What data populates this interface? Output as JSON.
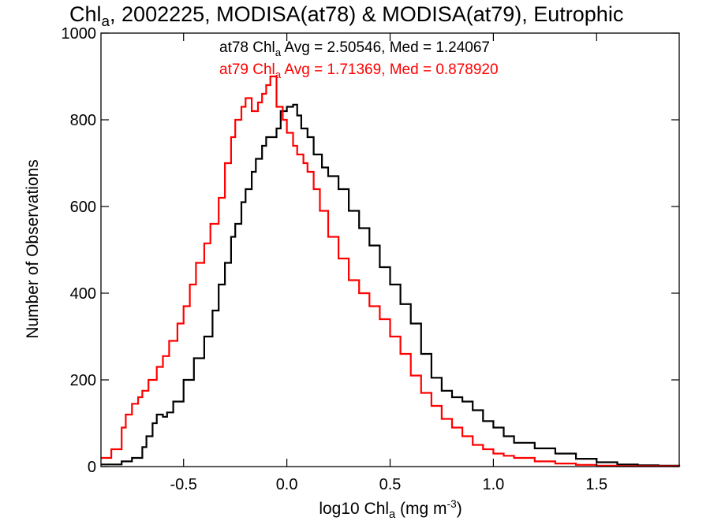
{
  "chart_data": {
    "type": "line",
    "step": true,
    "title": {
      "pre": "Chl",
      "sub": "a",
      "post": ", 2002225, MODISA(at78) & MODISA(at79), Eutrophic"
    },
    "xlabel": {
      "pre": "log10 Chl",
      "sub": "a",
      "mid": " (mg m",
      "sup": "-3",
      "post": ")"
    },
    "ylabel": "Number of Observations",
    "xlim": [
      -0.9,
      1.9
    ],
    "ylim": [
      0,
      1000
    ],
    "xticks": [
      "-0.5",
      "0.0",
      "0.5",
      "1.0",
      "1.5"
    ],
    "xtick_values": [
      -0.5,
      0.0,
      0.5,
      1.0,
      1.5
    ],
    "yticks": [
      "0",
      "200",
      "400",
      "600",
      "800",
      "1000"
    ],
    "ytick_values": [
      0,
      200,
      400,
      600,
      800,
      1000
    ],
    "grid": false,
    "annotations": [
      {
        "pre": "at78 Chl",
        "sub": "a",
        "post": " Avg = 2.50546, Med = 1.24067",
        "color": "#000000"
      },
      {
        "pre": "at79 Chl",
        "sub": "a",
        "post": " Avg = 1.71369, Med = 0.878920",
        "color": "#ff0000"
      }
    ],
    "series": [
      {
        "color": "#000000",
        "points": [
          [
            -0.9,
            5
          ],
          [
            -0.8,
            12
          ],
          [
            -0.75,
            20
          ],
          [
            -0.7,
            45
          ],
          [
            -0.68,
            70
          ],
          [
            -0.65,
            100
          ],
          [
            -0.63,
            120
          ],
          [
            -0.6,
            115
          ],
          [
            -0.58,
            125
          ],
          [
            -0.55,
            150
          ],
          [
            -0.5,
            200
          ],
          [
            -0.45,
            250
          ],
          [
            -0.4,
            300
          ],
          [
            -0.36,
            360
          ],
          [
            -0.33,
            420
          ],
          [
            -0.3,
            470
          ],
          [
            -0.27,
            530
          ],
          [
            -0.25,
            560
          ],
          [
            -0.22,
            610
          ],
          [
            -0.2,
            640
          ],
          [
            -0.17,
            680
          ],
          [
            -0.15,
            710
          ],
          [
            -0.12,
            740
          ],
          [
            -0.1,
            760
          ],
          [
            -0.08,
            760
          ],
          [
            -0.05,
            780
          ],
          [
            -0.03,
            820
          ],
          [
            0.0,
            830
          ],
          [
            0.03,
            835
          ],
          [
            0.05,
            810
          ],
          [
            0.07,
            780
          ],
          [
            0.1,
            760
          ],
          [
            0.13,
            720
          ],
          [
            0.17,
            690
          ],
          [
            0.2,
            670
          ],
          [
            0.25,
            640
          ],
          [
            0.3,
            590
          ],
          [
            0.35,
            550
          ],
          [
            0.4,
            510
          ],
          [
            0.45,
            460
          ],
          [
            0.5,
            420
          ],
          [
            0.55,
            375
          ],
          [
            0.6,
            330
          ],
          [
            0.65,
            260
          ],
          [
            0.7,
            205
          ],
          [
            0.75,
            175
          ],
          [
            0.8,
            160
          ],
          [
            0.85,
            150
          ],
          [
            0.9,
            130
          ],
          [
            0.95,
            105
          ],
          [
            1.0,
            90
          ],
          [
            1.05,
            70
          ],
          [
            1.1,
            55
          ],
          [
            1.2,
            42
          ],
          [
            1.3,
            30
          ],
          [
            1.4,
            18
          ],
          [
            1.5,
            10
          ],
          [
            1.6,
            5
          ],
          [
            1.7,
            3
          ],
          [
            1.8,
            2
          ],
          [
            1.9,
            1
          ]
        ]
      },
      {
        "color": "#ff0000",
        "points": [
          [
            -0.9,
            20
          ],
          [
            -0.85,
            40
          ],
          [
            -0.8,
            90
          ],
          [
            -0.78,
            120
          ],
          [
            -0.75,
            145
          ],
          [
            -0.72,
            160
          ],
          [
            -0.7,
            175
          ],
          [
            -0.67,
            200
          ],
          [
            -0.63,
            230
          ],
          [
            -0.6,
            255
          ],
          [
            -0.57,
            290
          ],
          [
            -0.53,
            330
          ],
          [
            -0.5,
            370
          ],
          [
            -0.47,
            420
          ],
          [
            -0.44,
            470
          ],
          [
            -0.4,
            515
          ],
          [
            -0.37,
            560
          ],
          [
            -0.33,
            620
          ],
          [
            -0.3,
            700
          ],
          [
            -0.27,
            760
          ],
          [
            -0.25,
            800
          ],
          [
            -0.22,
            830
          ],
          [
            -0.2,
            850
          ],
          [
            -0.17,
            820
          ],
          [
            -0.14,
            840
          ],
          [
            -0.12,
            860
          ],
          [
            -0.1,
            880
          ],
          [
            -0.08,
            900
          ],
          [
            -0.05,
            830
          ],
          [
            -0.02,
            800
          ],
          [
            0.0,
            770
          ],
          [
            0.03,
            740
          ],
          [
            0.05,
            720
          ],
          [
            0.08,
            700
          ],
          [
            0.1,
            680
          ],
          [
            0.13,
            640
          ],
          [
            0.16,
            590
          ],
          [
            0.2,
            530
          ],
          [
            0.25,
            480
          ],
          [
            0.3,
            430
          ],
          [
            0.35,
            400
          ],
          [
            0.4,
            370
          ],
          [
            0.45,
            340
          ],
          [
            0.5,
            300
          ],
          [
            0.55,
            260
          ],
          [
            0.6,
            210
          ],
          [
            0.65,
            170
          ],
          [
            0.7,
            140
          ],
          [
            0.75,
            110
          ],
          [
            0.8,
            90
          ],
          [
            0.85,
            70
          ],
          [
            0.9,
            50
          ],
          [
            0.95,
            40
          ],
          [
            1.0,
            30
          ],
          [
            1.05,
            25
          ],
          [
            1.1,
            20
          ],
          [
            1.2,
            12
          ],
          [
            1.3,
            7
          ],
          [
            1.4,
            4
          ],
          [
            1.5,
            2
          ],
          [
            1.6,
            1
          ],
          [
            1.9,
            0
          ]
        ]
      }
    ]
  }
}
